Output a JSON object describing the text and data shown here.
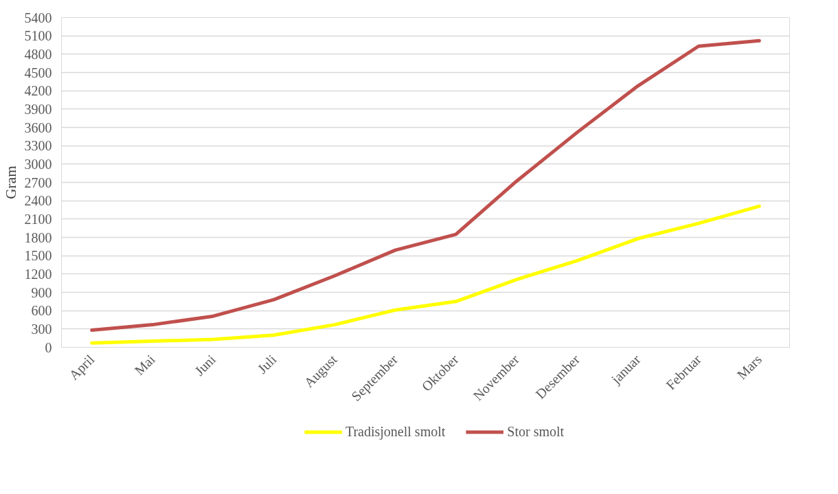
{
  "chart_data": {
    "type": "line",
    "ylabel": "Gram",
    "categories": [
      "April",
      "Mai",
      "Juni",
      "Juli",
      "August",
      "September",
      "Oktober",
      "November",
      "Desember",
      "januar",
      "Februar",
      "Mars"
    ],
    "series": [
      {
        "name": "Tradisjonell smolt",
        "color": "#ffff00",
        "values": [
          70,
          100,
          130,
          200,
          370,
          610,
          750,
          1110,
          1420,
          1780,
          2030,
          2310
        ]
      },
      {
        "name": "Stor smolt",
        "color": "#c0504d",
        "values": [
          280,
          370,
          510,
          780,
          1170,
          1590,
          1850,
          2720,
          3520,
          4280,
          4930,
          5020
        ]
      }
    ],
    "ylim": [
      0,
      5400
    ],
    "yticks": [
      0,
      300,
      600,
      900,
      1200,
      1500,
      1800,
      2100,
      2400,
      2700,
      3000,
      3300,
      3600,
      3900,
      4200,
      4500,
      4800,
      5100,
      5400
    ],
    "grid": "y",
    "legend": "bottom",
    "marker": "none",
    "line_style": "solid"
  }
}
